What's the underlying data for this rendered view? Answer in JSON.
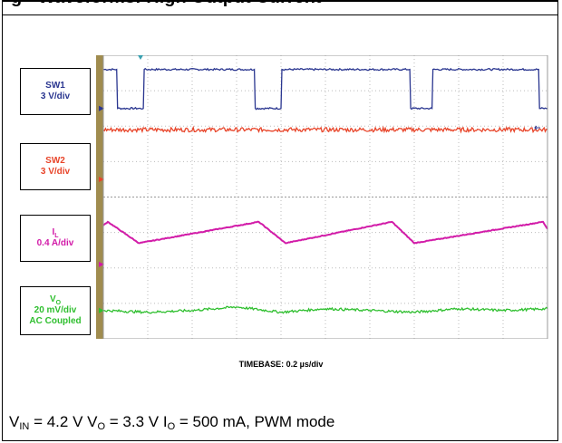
{
  "title": "g - Waveforms: High Output Current",
  "channels": [
    {
      "id": "SW1",
      "name": "SW1",
      "scale": "3 V/div",
      "color": "#2a3690"
    },
    {
      "id": "SW2",
      "name": "SW2",
      "scale": "3 V/div",
      "color": "#e8452a"
    },
    {
      "id": "IL",
      "name_main": "I",
      "name_sub": "L",
      "scale": "0.4 A/div",
      "color": "#d21ba8"
    },
    {
      "id": "VO",
      "name_main": "V",
      "name_sub": "O",
      "scale": "20 mV/div",
      "extra": "AC Coupled",
      "color": "#2fbf2f"
    }
  ],
  "timebase": "TIMEBASE: 0.2 µs/div",
  "caption": {
    "vin_main": "V",
    "vin_sub": "IN",
    "vin_val": " = 4.2 V ",
    "vo_main": "V",
    "vo_sub": "O",
    "vo_val": " = 3.3 V ",
    "io_main": "I",
    "io_sub": "O",
    "io_val": " = 500 mA, PWM mode"
  },
  "chart_data": {
    "type": "line",
    "title": "",
    "xlabel": "TIMEBASE: 0.2 µs/div",
    "ylabel": "",
    "x_unit": "div",
    "xlim": [
      0,
      10
    ],
    "ylim": [
      -4,
      4
    ],
    "grid": true,
    "series": [
      {
        "name": "SW1",
        "x": [
          0,
          0.3,
          0.32,
          0.9,
          0.92,
          3.4,
          3.42,
          4.0,
          4.02,
          6.9,
          6.92,
          7.4,
          7.42,
          9.8,
          9.82,
          10
        ],
        "values": [
          3.6,
          3.6,
          2.5,
          2.5,
          3.6,
          3.6,
          2.5,
          2.5,
          3.6,
          3.6,
          2.5,
          2.5,
          3.6,
          3.6,
          2.5,
          2.5
        ]
      },
      {
        "name": "SW2",
        "values": [
          1.9,
          1.9
        ],
        "x": [
          0,
          10
        ]
      },
      {
        "name": "IL",
        "x": [
          0,
          0.1,
          0.8,
          3.5,
          4.1,
          6.5,
          7.0,
          9.9,
          10
        ],
        "values": [
          -0.8,
          -0.7,
          -1.3,
          -0.7,
          -1.3,
          -0.7,
          -1.3,
          -0.7,
          -0.9
        ]
      },
      {
        "name": "VO",
        "x": [
          0,
          1,
          2,
          3,
          4,
          5,
          6,
          7,
          8,
          9,
          10
        ],
        "values": [
          -3.2,
          -3.25,
          -3.2,
          -3.1,
          -3.25,
          -3.15,
          -3.2,
          -3.25,
          -3.15,
          -3.2,
          -3.15
        ]
      }
    ]
  }
}
